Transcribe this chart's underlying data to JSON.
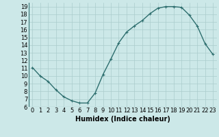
{
  "x": [
    0,
    1,
    2,
    3,
    4,
    5,
    6,
    7,
    8,
    9,
    10,
    11,
    12,
    13,
    14,
    15,
    16,
    17,
    18,
    19,
    20,
    21,
    22,
    23
  ],
  "y": [
    11.1,
    10.0,
    9.3,
    8.2,
    7.3,
    6.8,
    6.5,
    6.5,
    7.8,
    10.2,
    12.2,
    14.3,
    15.7,
    16.5,
    17.2,
    18.1,
    18.8,
    19.0,
    19.0,
    18.9,
    17.9,
    16.5,
    14.2,
    12.8
  ],
  "line_color": "#2d6e6e",
  "marker": "+",
  "marker_size": 3,
  "bg_color": "#cce8e8",
  "grid_color": "#aacccc",
  "xlabel": "Humidex (Indice chaleur)",
  "xlim": [
    -0.5,
    23.5
  ],
  "ylim": [
    6,
    19.5
  ],
  "yticks": [
    6,
    7,
    8,
    9,
    10,
    11,
    12,
    13,
    14,
    15,
    16,
    17,
    18,
    19
  ],
  "xticks": [
    0,
    1,
    2,
    3,
    4,
    5,
    6,
    7,
    8,
    9,
    10,
    11,
    12,
    13,
    14,
    15,
    16,
    17,
    18,
    19,
    20,
    21,
    22,
    23
  ],
  "xlabel_fontsize": 7,
  "tick_fontsize": 6,
  "line_width": 1.0
}
